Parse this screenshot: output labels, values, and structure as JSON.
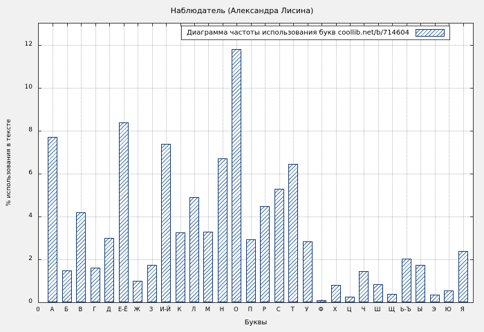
{
  "window_title": "Наблюдатель (Александра Лисина)",
  "chart_data": {
    "type": "bar",
    "title": "Наблюдатель (Александра Лисина)",
    "legend": "Диаграмма частоты использования букв coollib.net/b/714604",
    "legend_position": "top-right",
    "xlabel": "Буквы",
    "ylabel": "% использования в тексте",
    "origin_label": "0",
    "ylim": [
      0,
      13
    ],
    "yticks": [
      0,
      2,
      4,
      6,
      8,
      10,
      12
    ],
    "grid": true,
    "bar_style": "diagonal-hatch",
    "colors": {
      "bar_outline": "#123c7c",
      "bar_hatch": "#3f6fae",
      "grid": "#b8b8b8",
      "background": "#f1f1f1",
      "plot_background": "#ffffff"
    },
    "categories": [
      "А",
      "Б",
      "В",
      "Г",
      "Д",
      "Е-Ё",
      "Ж",
      "З",
      "И-Й",
      "К",
      "Л",
      "М",
      "Н",
      "О",
      "П",
      "Р",
      "С",
      "Т",
      "У",
      "Ф",
      "Х",
      "Ц",
      "Ч",
      "Ш",
      "Щ",
      "Ь-Ъ",
      "Ы",
      "Э",
      "Ю",
      "Я"
    ],
    "values": [
      7.7,
      1.5,
      4.2,
      1.6,
      3.0,
      8.4,
      1.0,
      1.75,
      7.4,
      3.25,
      4.9,
      3.3,
      6.7,
      11.8,
      2.95,
      4.5,
      5.3,
      6.45,
      2.85,
      0.1,
      0.8,
      0.25,
      1.45,
      0.85,
      0.4,
      2.05,
      1.75,
      0.35,
      0.55,
      2.4
    ]
  }
}
